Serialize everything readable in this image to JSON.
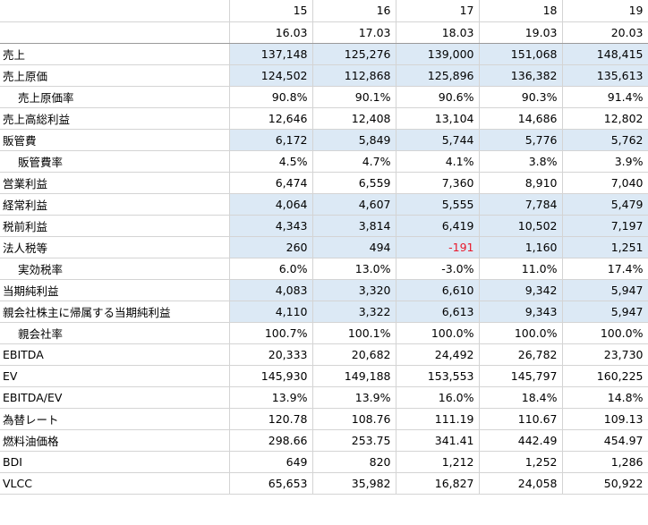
{
  "header": {
    "years": [
      "15",
      "16",
      "17",
      "18",
      "19"
    ],
    "periods": [
      "16.03",
      "17.03",
      "18.03",
      "19.03",
      "20.03"
    ]
  },
  "highlight_color": "#dce9f5",
  "negative_color": "#e8192c",
  "rows": [
    {
      "label": "売上",
      "indent": false,
      "highlight": true,
      "values": [
        "137,148",
        "125,276",
        "139,000",
        "151,068",
        "148,415"
      ]
    },
    {
      "label": "売上原価",
      "indent": false,
      "highlight": true,
      "values": [
        "124,502",
        "112,868",
        "125,896",
        "136,382",
        "135,613"
      ]
    },
    {
      "label": "売上原価率",
      "indent": true,
      "highlight": false,
      "values": [
        "90.8%",
        "90.1%",
        "90.6%",
        "90.3%",
        "91.4%"
      ]
    },
    {
      "label": "売上高総利益",
      "indent": false,
      "highlight": false,
      "values": [
        "12,646",
        "12,408",
        "13,104",
        "14,686",
        "12,802"
      ]
    },
    {
      "label": "販管費",
      "indent": false,
      "highlight": true,
      "values": [
        "6,172",
        "5,849",
        "5,744",
        "5,776",
        "5,762"
      ]
    },
    {
      "label": "販管費率",
      "indent": true,
      "highlight": false,
      "values": [
        "4.5%",
        "4.7%",
        "4.1%",
        "3.8%",
        "3.9%"
      ]
    },
    {
      "label": "営業利益",
      "indent": false,
      "highlight": false,
      "values": [
        "6,474",
        "6,559",
        "7,360",
        "8,910",
        "7,040"
      ]
    },
    {
      "label": "経常利益",
      "indent": false,
      "highlight": true,
      "values": [
        "4,064",
        "4,607",
        "5,555",
        "7,784",
        "5,479"
      ]
    },
    {
      "label": "税前利益",
      "indent": false,
      "highlight": true,
      "values": [
        "4,343",
        "3,814",
        "6,419",
        "10,502",
        "7,197"
      ]
    },
    {
      "label": "法人税等",
      "indent": false,
      "highlight": true,
      "values": [
        "260",
        "494",
        "-191",
        "1,160",
        "1,251"
      ],
      "negative_index": 2
    },
    {
      "label": "実効税率",
      "indent": true,
      "highlight": false,
      "values": [
        "6.0%",
        "13.0%",
        "-3.0%",
        "11.0%",
        "17.4%"
      ]
    },
    {
      "label": "当期純利益",
      "indent": false,
      "highlight": true,
      "values": [
        "4,083",
        "3,320",
        "6,610",
        "9,342",
        "5,947"
      ]
    },
    {
      "label": "親会社株主に帰属する当期純利益",
      "indent": false,
      "highlight": true,
      "values": [
        "4,110",
        "3,322",
        "6,613",
        "9,343",
        "5,947"
      ]
    },
    {
      "label": "親会社率",
      "indent": true,
      "highlight": false,
      "values": [
        "100.7%",
        "100.1%",
        "100.0%",
        "100.0%",
        "100.0%"
      ]
    },
    {
      "label": "EBITDA",
      "indent": false,
      "highlight": false,
      "values": [
        "20,333",
        "20,682",
        "24,492",
        "26,782",
        "23,730"
      ]
    },
    {
      "label": "EV",
      "indent": false,
      "highlight": false,
      "values": [
        "145,930",
        "149,188",
        "153,553",
        "145,797",
        "160,225"
      ]
    },
    {
      "label": "EBITDA/EV",
      "indent": false,
      "highlight": false,
      "values": [
        "13.9%",
        "13.9%",
        "16.0%",
        "18.4%",
        "14.8%"
      ]
    },
    {
      "label": "為替レート",
      "indent": false,
      "highlight": false,
      "values": [
        "120.78",
        "108.76",
        "111.19",
        "110.67",
        "109.13"
      ]
    },
    {
      "label": "燃料油価格",
      "indent": false,
      "highlight": false,
      "values": [
        "298.66",
        "253.75",
        "341.41",
        "442.49",
        "454.97"
      ]
    },
    {
      "label": "BDI",
      "indent": false,
      "highlight": false,
      "values": [
        "649",
        "820",
        "1,212",
        "1,252",
        "1,286"
      ]
    },
    {
      "label": "VLCC",
      "indent": false,
      "highlight": false,
      "values": [
        "65,653",
        "35,982",
        "16,827",
        "24,058",
        "50,922"
      ]
    }
  ]
}
